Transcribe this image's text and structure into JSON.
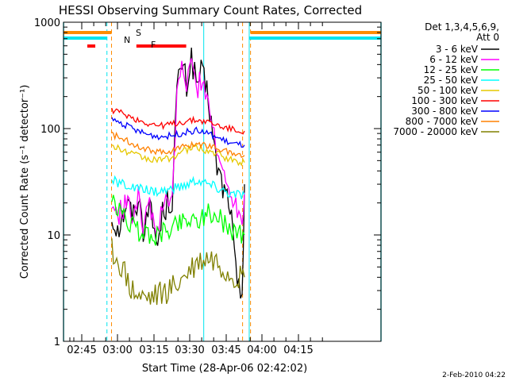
{
  "chart_data": {
    "type": "line",
    "title": "HESSI Observing Summary Count Rates, Corrected",
    "xlabel": "Start Time (28-Apr-06 02:42:02)",
    "ylabel": "Corrected Count Rate (s⁻¹ detector⁻¹)",
    "yscale": "log",
    "ylim": [
      1,
      1000
    ],
    "xlim_minutes": [
      -0.03,
      131.58
    ],
    "x_ticks": [
      "02:45",
      "03:00",
      "03:15",
      "03:30",
      "03:45",
      "04:00",
      "04:15"
    ],
    "y_ticks": [
      "1",
      "10",
      "100",
      "1000"
    ],
    "grid": false,
    "legend_position": "top-right",
    "legend_header": [
      "Det 1,3,4,5,6,9,",
      "Att 0"
    ],
    "footer_stamp": "2-Feb-2010 04:22",
    "markers": {
      "s_label": "S",
      "n_label": "N",
      "f_label": "F",
      "night_cyan_x": [
        0,
        17.98,
        58.1,
        76.95,
        131.58
      ],
      "saa_orange_x": [
        19.88,
        74.2,
        77.5
      ],
      "flare_bar_x": [
        9.85,
        13.15
      ],
      "flare_bar2_x": [
        30.18,
        50.83
      ]
    },
    "series": [
      {
        "name": "3 - 6 keV",
        "color": "#000000",
        "x": [
          20,
          23,
          26,
          29,
          31,
          33,
          35,
          37,
          39,
          41,
          43,
          45,
          47,
          49,
          51,
          53,
          55,
          57,
          60,
          63,
          66,
          69,
          72,
          74,
          75
        ],
        "y": [
          14,
          12,
          20,
          15,
          24,
          11,
          20,
          13,
          8,
          16,
          20,
          22,
          220,
          420,
          250,
          480,
          260,
          330,
          200,
          50,
          28,
          20,
          3,
          3,
          30
        ]
      },
      {
        "name": "6 - 12 keV",
        "color": "#ff00ff",
        "x": [
          20,
          23,
          26,
          29,
          31,
          33,
          35,
          37,
          39,
          41,
          43,
          45,
          47,
          49,
          51,
          53,
          55,
          57,
          60,
          63,
          66,
          69,
          72,
          74,
          75
        ],
        "y": [
          18,
          16,
          20,
          15,
          27,
          12,
          20,
          14,
          11,
          17,
          20,
          22,
          200,
          420,
          240,
          440,
          230,
          290,
          200,
          65,
          40,
          28,
          17,
          15,
          25
        ]
      },
      {
        "name": "12 - 25 keV",
        "color": "#00ff00",
        "x": [
          20,
          25,
          30,
          35,
          40,
          45,
          50,
          55,
          60,
          65,
          70,
          75
        ],
        "y": [
          20,
          15,
          11,
          10,
          10,
          12,
          14,
          14,
          16,
          14,
          11,
          10
        ]
      },
      {
        "name": "25 - 50 keV",
        "color": "#00ffff",
        "x": [
          20,
          25,
          30,
          35,
          40,
          45,
          50,
          55,
          60,
          65,
          70,
          75
        ],
        "y": [
          32,
          30,
          27,
          26,
          26,
          27,
          29,
          33,
          30,
          27,
          24,
          24
        ]
      },
      {
        "name": "50 - 100 keV",
        "color": "#e6c800",
        "x": [
          20,
          25,
          30,
          35,
          40,
          45,
          50,
          55,
          60,
          65,
          70,
          75
        ],
        "y": [
          68,
          62,
          56,
          52,
          50,
          54,
          62,
          67,
          62,
          56,
          50,
          48
        ]
      },
      {
        "name": "100 - 300 keV",
        "color": "#ff0000",
        "x": [
          20,
          25,
          30,
          35,
          40,
          45,
          50,
          55,
          60,
          65,
          70,
          75
        ],
        "y": [
          150,
          138,
          122,
          112,
          106,
          110,
          116,
          120,
          115,
          105,
          98,
          95
        ]
      },
      {
        "name": "300 - 800 keV",
        "color": "#0000ff",
        "x": [
          20,
          25,
          30,
          35,
          40,
          45,
          50,
          55,
          60,
          65,
          70,
          75
        ],
        "y": [
          122,
          110,
          96,
          88,
          84,
          86,
          92,
          96,
          90,
          80,
          72,
          70
        ]
      },
      {
        "name": "800 - 7000 keV",
        "color": "#ff8000",
        "x": [
          20,
          25,
          30,
          35,
          40,
          45,
          50,
          55,
          60,
          65,
          70,
          75
        ],
        "y": [
          88,
          80,
          70,
          64,
          60,
          62,
          68,
          72,
          70,
          64,
          58,
          56
        ]
      },
      {
        "name": "7000 - 20000 keV",
        "color": "#808000",
        "x": [
          20,
          24,
          28,
          32,
          36,
          40,
          44,
          48,
          52,
          56,
          60,
          64,
          68,
          72,
          75
        ],
        "y": [
          7,
          5,
          3,
          2.5,
          2.5,
          2.7,
          3,
          3.5,
          4.5,
          5.5,
          6,
          5.5,
          4.5,
          4,
          4
        ]
      }
    ]
  }
}
